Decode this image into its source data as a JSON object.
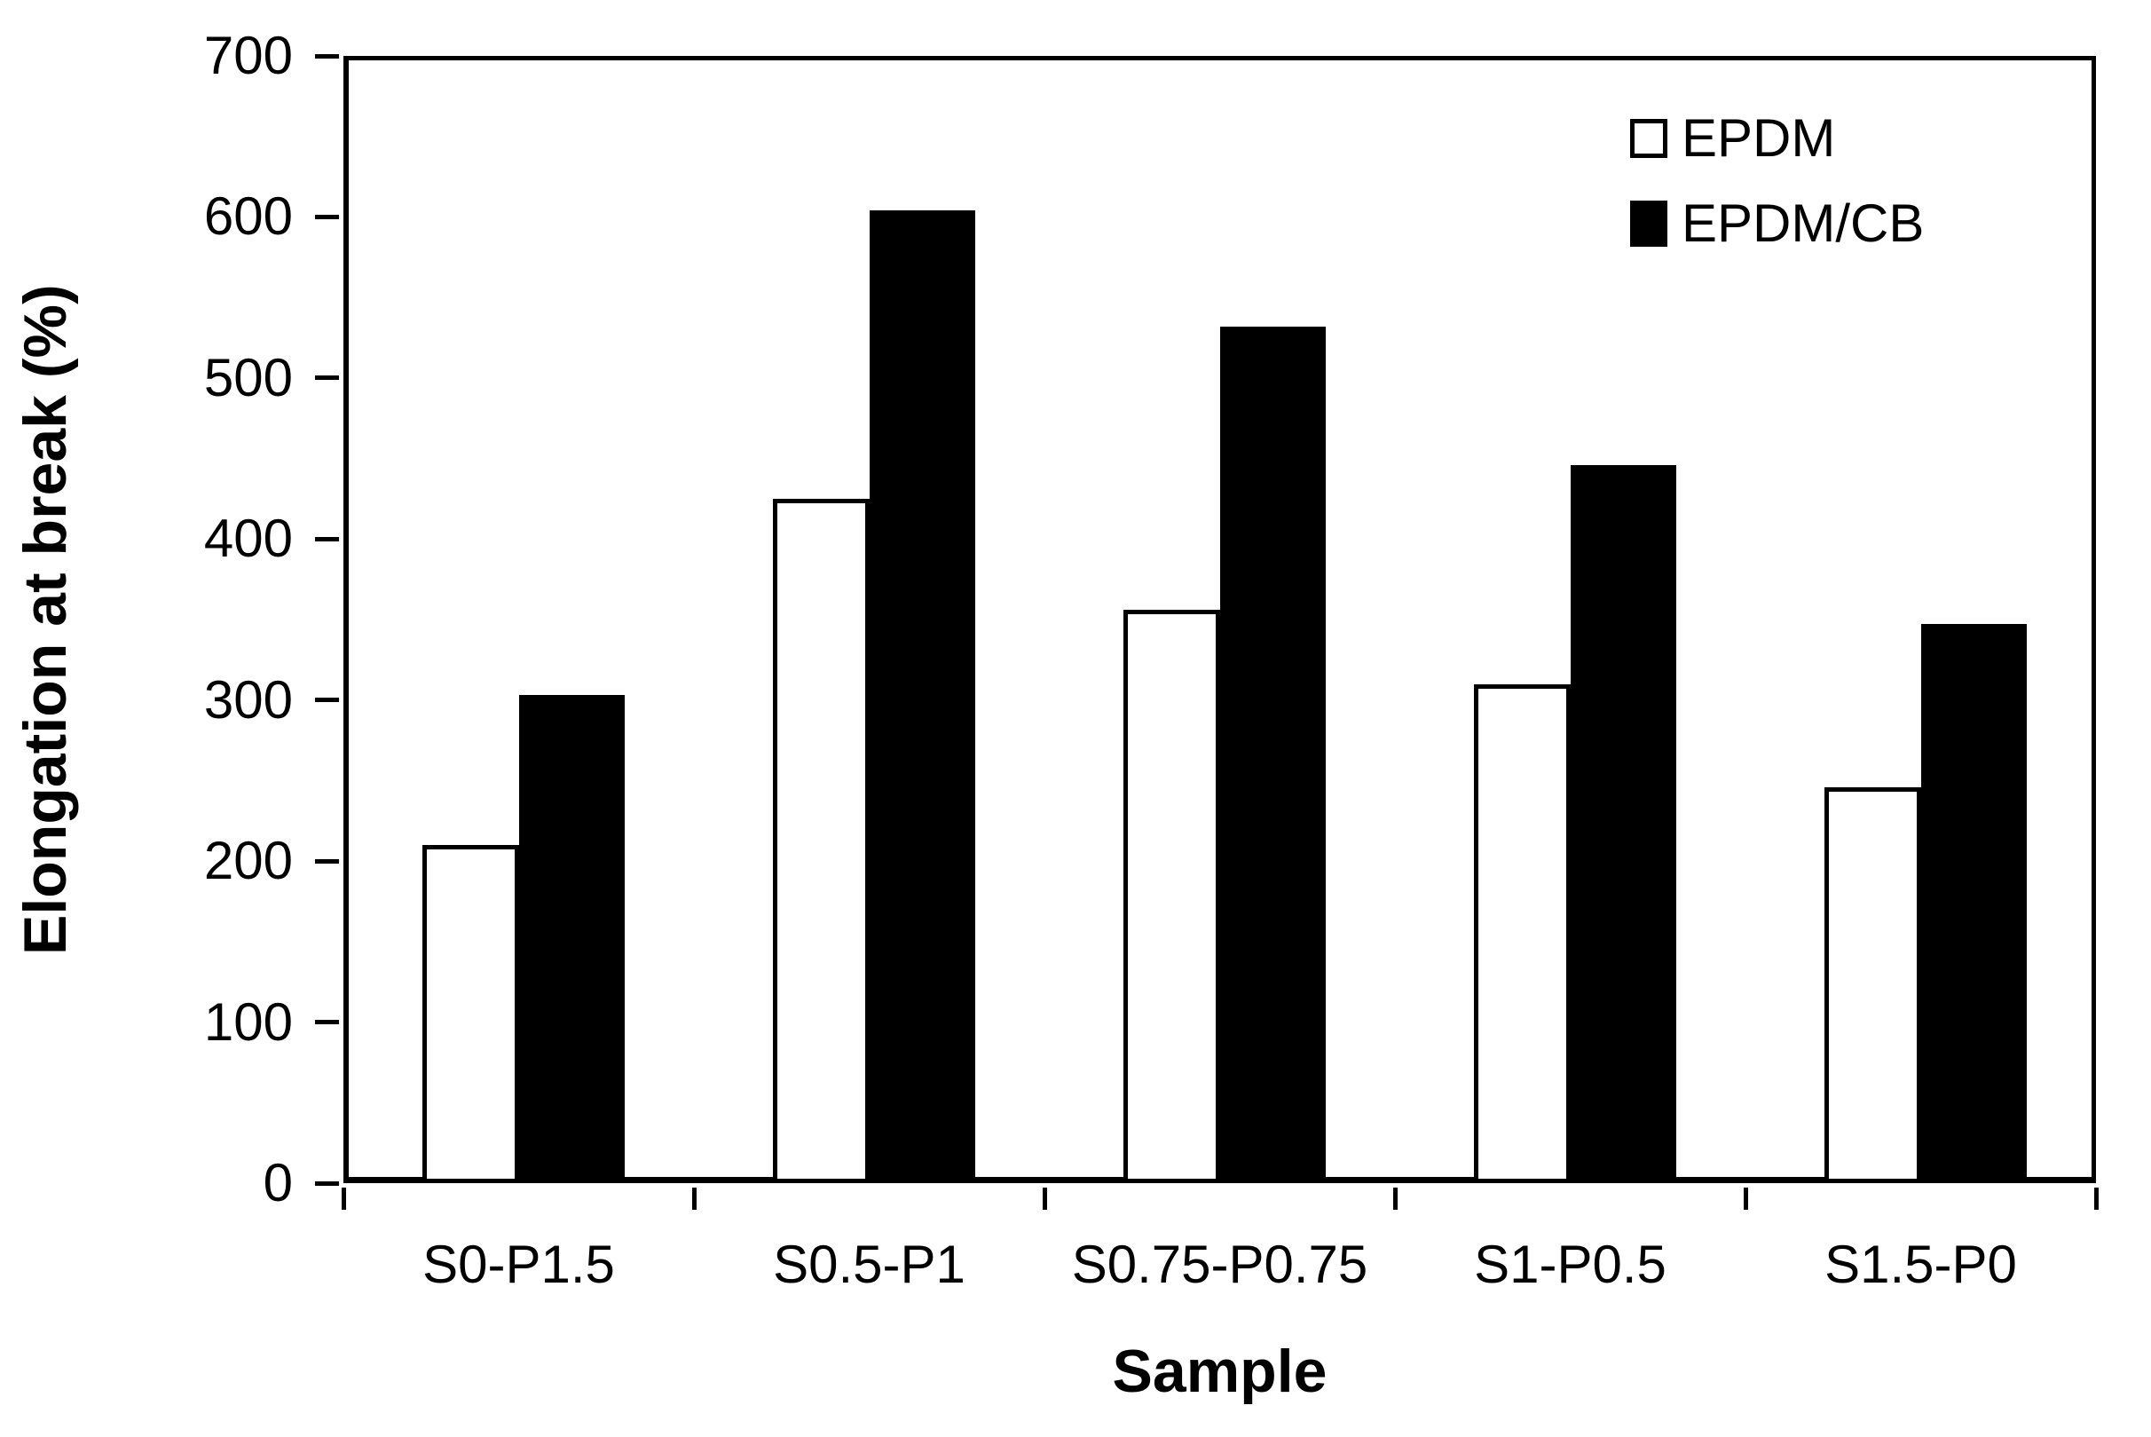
{
  "chart_data": {
    "type": "bar",
    "title": "",
    "categories": [
      "S0-P1.5",
      "S0.5-P1",
      "S0.75-P0.75",
      "S1-P0.5",
      "S1.5-P0"
    ],
    "series": [
      {
        "name": "EPDM",
        "fill": "#ffffff",
        "stroke": "#000000",
        "values": [
          210,
          425,
          356,
          310,
          246
        ]
      },
      {
        "name": "EPDM/CB",
        "fill": "#000000",
        "stroke": "#000000",
        "values": [
          303,
          604,
          532,
          446,
          347
        ]
      }
    ],
    "xlabel": "Sample",
    "ylabel": "Elongation at break (%)",
    "ylim": [
      0,
      700
    ],
    "yticks": [
      0,
      100,
      200,
      300,
      400,
      500,
      600,
      700
    ],
    "grid": false,
    "legend_position": "top-right",
    "plot_border": true
  },
  "colors": {
    "axis": "#000000",
    "background": "#ffffff",
    "bar_epdm": "#ffffff",
    "bar_epdm_cb": "#000000"
  }
}
